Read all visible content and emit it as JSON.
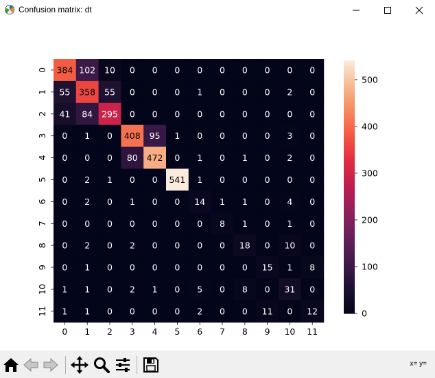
{
  "window": {
    "title": "Confusion matrix: dt",
    "icon": "matplotlib-figure-icon",
    "controls": [
      "minimize-icon",
      "maximize-icon",
      "close-icon"
    ]
  },
  "toolbar": {
    "buttons": [
      "home-icon",
      "back-icon",
      "forward-icon",
      "pan-icon",
      "zoom-icon",
      "configure-subplots-icon",
      "save-icon"
    ],
    "coords_text": "x= y="
  },
  "chart_data": {
    "type": "heatmap",
    "title": "",
    "xlabel": "",
    "ylabel": "",
    "x_labels": [
      "0",
      "1",
      "2",
      "3",
      "4",
      "5",
      "6",
      "7",
      "8",
      "9",
      "10",
      "11"
    ],
    "y_labels": [
      "0",
      "1",
      "2",
      "3",
      "4",
      "5",
      "6",
      "7",
      "8",
      "9",
      "10",
      "11"
    ],
    "matrix": [
      [
        384,
        102,
        10,
        0,
        0,
        0,
        0,
        0,
        0,
        0,
        0,
        0
      ],
      [
        55,
        358,
        55,
        0,
        0,
        0,
        1,
        0,
        0,
        0,
        2,
        0
      ],
      [
        41,
        84,
        295,
        0,
        0,
        0,
        0,
        0,
        0,
        0,
        0,
        0
      ],
      [
        0,
        1,
        0,
        408,
        95,
        1,
        0,
        0,
        0,
        0,
        3,
        0
      ],
      [
        0,
        0,
        0,
        80,
        472,
        0,
        1,
        0,
        1,
        0,
        2,
        0
      ],
      [
        0,
        2,
        1,
        0,
        0,
        541,
        1,
        0,
        0,
        0,
        0,
        0
      ],
      [
        0,
        2,
        0,
        1,
        0,
        0,
        14,
        1,
        1,
        0,
        4,
        0
      ],
      [
        0,
        0,
        0,
        0,
        0,
        0,
        0,
        8,
        1,
        0,
        1,
        0
      ],
      [
        0,
        2,
        0,
        2,
        0,
        0,
        0,
        0,
        18,
        0,
        10,
        0
      ],
      [
        0,
        1,
        0,
        0,
        0,
        0,
        0,
        0,
        0,
        15,
        1,
        8
      ],
      [
        1,
        1,
        0,
        2,
        1,
        0,
        5,
        0,
        8,
        0,
        31,
        0
      ],
      [
        1,
        1,
        0,
        0,
        0,
        0,
        2,
        0,
        0,
        11,
        0,
        12
      ]
    ],
    "colormap": "rocket",
    "vmin": 0,
    "vmax": 541,
    "colorbar_ticks": [
      0,
      100,
      200,
      300,
      400,
      500
    ],
    "annotated": true,
    "grid": false
  }
}
